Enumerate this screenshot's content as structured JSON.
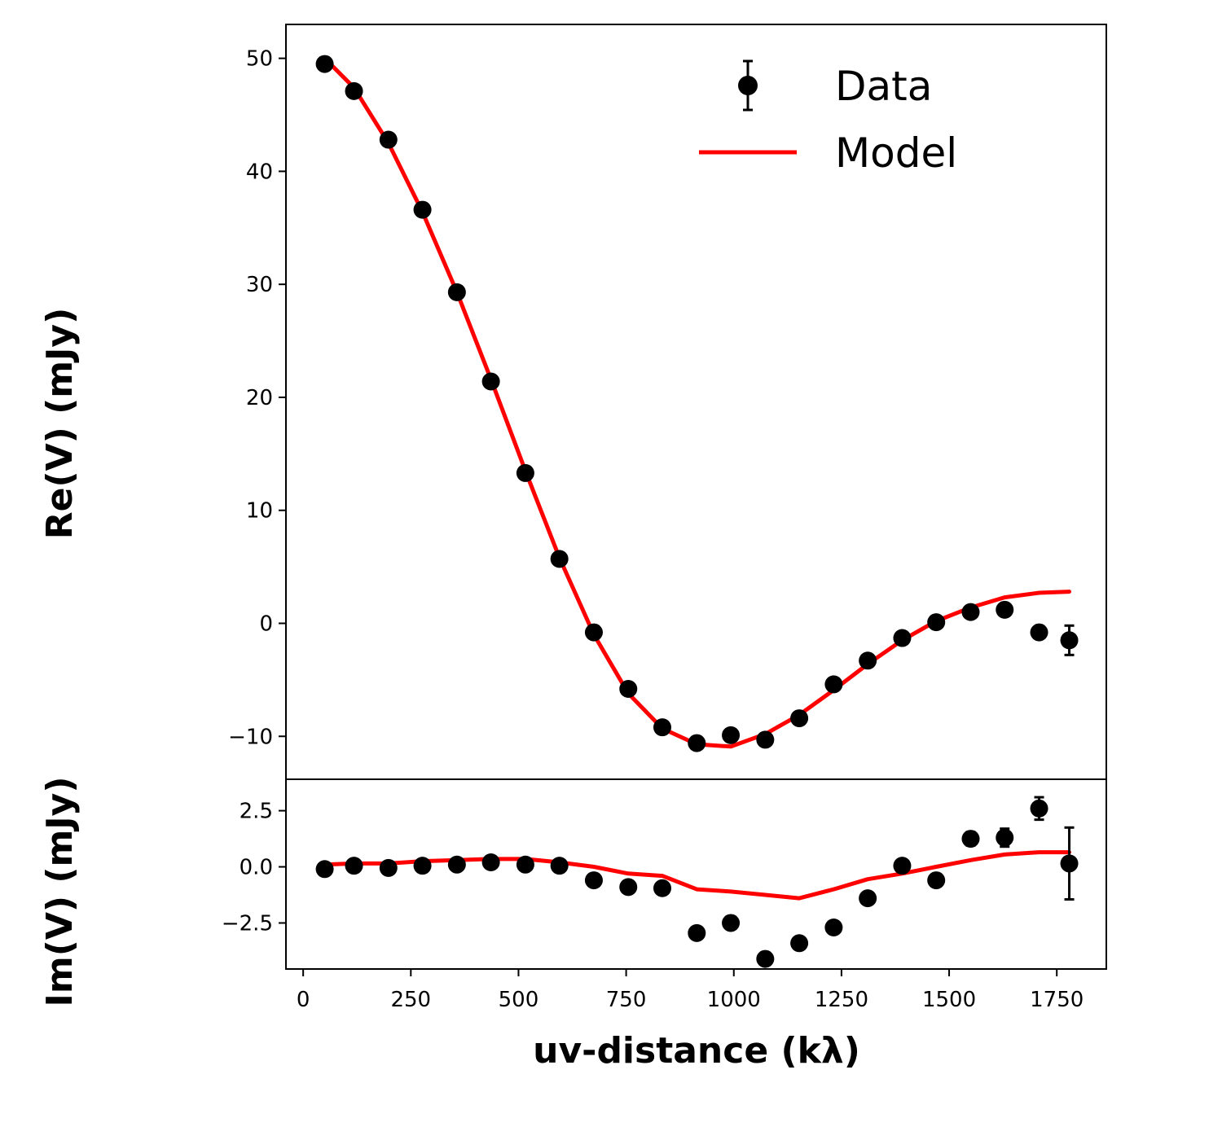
{
  "chart_data": [
    {
      "type": "scatter",
      "panel": "top",
      "title": "",
      "xlabel": "",
      "ylabel": "Re(V) (mJy)",
      "xlim": [
        -40,
        1865
      ],
      "ylim": [
        -13.8,
        53
      ],
      "yticks": [
        {
          "value": 50,
          "label": "50"
        },
        {
          "value": 40,
          "label": "40"
        },
        {
          "value": 30,
          "label": "30"
        },
        {
          "value": 20,
          "label": "20"
        },
        {
          "value": 10,
          "label": "10"
        },
        {
          "value": 0,
          "label": "0"
        },
        {
          "value": -10,
          "label": "−10"
        }
      ],
      "legend": {
        "placement": "top-right",
        "entries": [
          {
            "label": "Data",
            "kind": "errorbar-marker"
          },
          {
            "label": "Model",
            "kind": "line"
          }
        ]
      },
      "series": [
        {
          "name": "Data",
          "kind": "points",
          "color": "#000000",
          "x": [
            50,
            118,
            198,
            277,
            357,
            436,
            516,
            595,
            675,
            755,
            834,
            914,
            993,
            1073,
            1152,
            1232,
            1311,
            1391,
            1470,
            1550,
            1629,
            1709,
            1779
          ],
          "y": [
            49.5,
            47.1,
            42.8,
            36.6,
            29.3,
            21.4,
            13.3,
            5.7,
            -0.8,
            -5.8,
            -9.2,
            -10.6,
            -9.9,
            -10.3,
            -8.4,
            -5.4,
            -3.3,
            -1.3,
            0.1,
            1.0,
            1.2,
            -0.8,
            -1.5
          ],
          "yerr": [
            0.2,
            0.2,
            0.2,
            0.2,
            0.2,
            0.2,
            0.2,
            0.2,
            0.2,
            0.2,
            0.2,
            0.2,
            0.2,
            0.3,
            0.3,
            0.3,
            0.3,
            0.3,
            0.3,
            0.3,
            0.4,
            0.5,
            1.3
          ]
        },
        {
          "name": "Model",
          "kind": "line",
          "color": "#ff0000",
          "x": [
            50,
            118,
            198,
            277,
            357,
            436,
            516,
            595,
            675,
            755,
            834,
            914,
            993,
            1073,
            1152,
            1232,
            1311,
            1391,
            1470,
            1550,
            1629,
            1709,
            1779
          ],
          "y": [
            50.0,
            47.4,
            42.5,
            36.4,
            29.3,
            21.6,
            13.5,
            5.8,
            -1.0,
            -6.2,
            -9.3,
            -10.7,
            -10.9,
            -9.8,
            -8.1,
            -5.9,
            -3.6,
            -1.5,
            0.2,
            1.4,
            2.3,
            2.7,
            2.8
          ]
        }
      ]
    },
    {
      "type": "scatter",
      "panel": "bottom",
      "title": "",
      "xlabel": "uv-distance (kλ)",
      "ylabel": "Im(V) (mJy)",
      "xlim": [
        -40,
        1865
      ],
      "ylim": [
        -4.55,
        3.9
      ],
      "yticks": [
        {
          "value": 2.5,
          "label": "2.5"
        },
        {
          "value": 0,
          "label": "0.0"
        },
        {
          "value": -2.5,
          "label": "−2.5"
        }
      ],
      "xticks": [
        {
          "value": 0,
          "label": "0"
        },
        {
          "value": 250,
          "label": "250"
        },
        {
          "value": 500,
          "label": "500"
        },
        {
          "value": 750,
          "label": "750"
        },
        {
          "value": 1000,
          "label": "1000"
        },
        {
          "value": 1250,
          "label": "1250"
        },
        {
          "value": 1500,
          "label": "1500"
        },
        {
          "value": 1750,
          "label": "1750"
        }
      ],
      "series": [
        {
          "name": "Data",
          "kind": "points",
          "color": "#000000",
          "x": [
            50,
            118,
            198,
            277,
            357,
            436,
            516,
            595,
            675,
            755,
            834,
            914,
            993,
            1073,
            1152,
            1232,
            1311,
            1391,
            1470,
            1550,
            1629,
            1709,
            1779
          ],
          "y": [
            -0.1,
            0.05,
            -0.05,
            0.05,
            0.1,
            0.2,
            0.1,
            0.05,
            -0.6,
            -0.9,
            -0.95,
            -2.95,
            -2.5,
            -4.1,
            -3.4,
            -2.7,
            -1.4,
            0.05,
            -0.6,
            1.25,
            1.3,
            2.6,
            0.15
          ],
          "yerr": [
            0.15,
            0.15,
            0.15,
            0.15,
            0.15,
            0.15,
            0.15,
            0.15,
            0.15,
            0.15,
            0.15,
            0.15,
            0.15,
            0.15,
            0.2,
            0.2,
            0.2,
            0.25,
            0.25,
            0.3,
            0.4,
            0.5,
            1.6
          ]
        },
        {
          "name": "Model",
          "kind": "line",
          "color": "#ff0000",
          "x": [
            50,
            118,
            198,
            277,
            357,
            436,
            516,
            595,
            675,
            755,
            834,
            914,
            993,
            1073,
            1152,
            1232,
            1311,
            1391,
            1470,
            1550,
            1629,
            1709,
            1779
          ],
          "y": [
            0.1,
            0.15,
            0.15,
            0.25,
            0.3,
            0.35,
            0.35,
            0.2,
            0.0,
            -0.3,
            -0.4,
            -1.0,
            -1.1,
            -1.25,
            -1.4,
            -1.0,
            -0.55,
            -0.3,
            0.0,
            0.3,
            0.55,
            0.65,
            0.65
          ]
        }
      ]
    }
  ]
}
